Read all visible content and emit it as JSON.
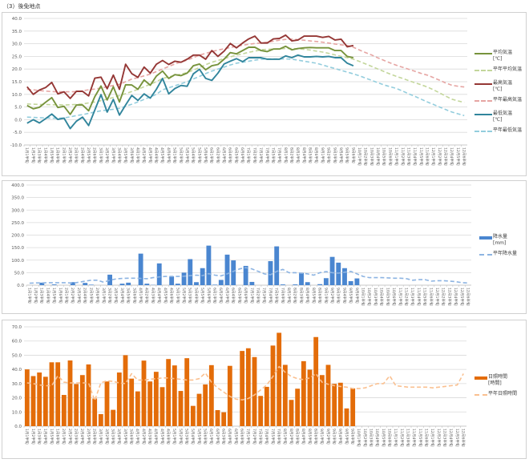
{
  "page_title": "（3）後免地点",
  "x_labels": [
    "1月1半旬",
    "1月2半旬",
    "1月3半旬",
    "1月4半旬",
    "1月5半旬",
    "1月6半旬",
    "2月1半旬",
    "2月2半旬",
    "2月3半旬",
    "2月4半旬",
    "2月5半旬",
    "2月6半旬",
    "3月1半旬",
    "3月2半旬",
    "3月3半旬",
    "3月4半旬",
    "3月5半旬",
    "3月6半旬",
    "4月1半旬",
    "4月2半旬",
    "4月3半旬",
    "4月4半旬",
    "4月5半旬",
    "4月6半旬",
    "5月1半旬",
    "5月2半旬",
    "5月3半旬",
    "5月4半旬",
    "5月5半旬",
    "5月6半旬",
    "6月1半旬",
    "6月2半旬",
    "6月3半旬",
    "6月4半旬",
    "6月5半旬",
    "6月6半旬",
    "7月1半旬",
    "7月2半旬",
    "7月3半旬",
    "7月4半旬",
    "7月5半旬",
    "7月6半旬",
    "8月1半旬",
    "8月2半旬",
    "8月3半旬",
    "8月4半旬",
    "8月5半旬",
    "8月6半旬",
    "9月1半旬",
    "9月2半旬",
    "9月3半旬",
    "9月4半旬",
    "9月5半旬",
    "9月6半旬",
    "10月1半旬",
    "10月2半旬",
    "10月3半旬",
    "10月4半旬",
    "10月5半旬",
    "10月6半旬",
    "11月1半旬",
    "11月2半旬",
    "11月3半旬",
    "11月4半旬",
    "11月5半旬",
    "11月6半旬",
    "12月1半旬",
    "12月2半旬",
    "12月3半旬",
    "12月4半旬",
    "12月5半旬",
    "12月6半旬"
  ],
  "legends": {
    "temp": [
      {
        "label": "平均気温",
        "unit": "[℃]"
      },
      {
        "label": "平年平均気温"
      },
      {
        "label": "最高気温",
        "unit": "[℃]"
      },
      {
        "label": "平年最高気温"
      },
      {
        "label": "最低気温",
        "unit": "[℃]"
      },
      {
        "label": "平年最低気温"
      }
    ],
    "precip": [
      {
        "label": "降水量",
        "unit": "[mm]"
      },
      {
        "label": "平年降水量"
      }
    ],
    "sun": [
      {
        "label": "日照時間",
        "unit": "[時間]"
      },
      {
        "label": "平年日照時間"
      }
    ]
  },
  "chart_data": [
    {
      "id": "temp",
      "type": "line",
      "title": "",
      "xlabel": "",
      "ylabel": "",
      "ylim": [
        -10,
        40
      ],
      "yticks": [
        "-10.0",
        "-5.0",
        "0.0",
        "5.0",
        "10.0",
        "15.0",
        "20.0",
        "25.0",
        "30.0",
        "35.0",
        "40.0"
      ],
      "grid": true,
      "legend": "right",
      "series": [
        {
          "name": "平年最高気温",
          "kind": "dashed",
          "color": "#e6a5a3",
          "values": [
            12,
            11.8,
            11.5,
            11.3,
            11.1,
            11,
            11,
            11,
            11.1,
            11.4,
            11.8,
            12.1,
            12.5,
            13,
            13.5,
            14,
            15,
            16,
            16.6,
            17.3,
            18,
            19,
            20,
            21,
            22,
            22.8,
            23.5,
            24.5,
            25.5,
            26.2,
            26.9,
            27.5,
            28,
            28.5,
            29,
            29.4,
            29.8,
            30.1,
            30.3,
            30.6,
            31,
            31.4,
            31.7,
            31.8,
            31.6,
            31.4,
            31.1,
            30.9,
            30.6,
            30.3,
            29.9,
            29.6,
            29.3,
            28.6,
            27.5,
            26.5,
            25.5,
            24.4,
            23.4,
            22.4,
            21.5,
            20.7,
            19.9,
            19.1,
            18.3,
            17.6,
            16.6,
            15.6,
            14.5,
            13.6,
            13.2,
            12.9
          ]
        },
        {
          "name": "平年平均気温",
          "kind": "dashed",
          "color": "#c3d69b",
          "values": [
            6.2,
            6.1,
            6,
            6,
            5.9,
            5.9,
            5.8,
            5.9,
            6,
            6.2,
            6.6,
            7,
            7.5,
            8.1,
            8.8,
            9.5,
            10.3,
            11.1,
            12,
            13,
            14,
            15,
            16.3,
            16.9,
            17.5,
            18,
            18.6,
            19.6,
            20.6,
            21.7,
            22.7,
            23.4,
            24.1,
            24.8,
            25.5,
            26,
            26.6,
            27.1,
            27.6,
            27.8,
            27.9,
            28,
            28.1,
            28.1,
            28,
            27.8,
            27.5,
            27.1,
            26.7,
            26.2,
            25.6,
            25,
            24.5,
            23.9,
            23,
            22,
            21,
            20,
            19,
            18,
            17.1,
            16.3,
            15.4,
            14.6,
            13.8,
            12.9,
            11.8,
            10.6,
            9.3,
            8.1,
            7.4,
            6.8
          ]
        },
        {
          "name": "平年最低気温",
          "kind": "dashed",
          "color": "#93cddd",
          "values": [
            1,
            0.9,
            0.8,
            0.7,
            0.6,
            0.5,
            0.7,
            1.1,
            1.6,
            2,
            2.5,
            3,
            3.5,
            3.8,
            4.1,
            4.5,
            5.3,
            6.1,
            7,
            8,
            9,
            10,
            11.8,
            12.6,
            13.4,
            14.2,
            15,
            16.1,
            17.1,
            18.2,
            19.2,
            20,
            20.8,
            21.6,
            22.3,
            22.7,
            23.1,
            23.5,
            23.9,
            24,
            24,
            24,
            24,
            23.9,
            23.5,
            23.1,
            22.7,
            22.3,
            21.6,
            20.9,
            20.2,
            19.5,
            18.8,
            18.1,
            17.3,
            16.4,
            15.5,
            14.6,
            13.7,
            13,
            12.3,
            11.3,
            10.2,
            9.2,
            8.1,
            7,
            6,
            5,
            4,
            3,
            2.3,
            1.6
          ]
        },
        {
          "name": "最高気温",
          "kind": "solid",
          "color": "#953735",
          "values": [
            13,
            10,
            11.7,
            12.7,
            14.7,
            10.2,
            11,
            8.4,
            11.2,
            11.2,
            9.4,
            16.4,
            16.8,
            12.2,
            17.6,
            12,
            21.9,
            18.2,
            16.7,
            20.8,
            18.4,
            21.9,
            23.4,
            21.8,
            23.1,
            22.7,
            23.9,
            25.5,
            25.5,
            23.9,
            27.3,
            25,
            27.1,
            30.1,
            28.4,
            30.3,
            31.9,
            33,
            30.3,
            30.3,
            31.9,
            32.1,
            33.4,
            31.1,
            31.5,
            33,
            33,
            33,
            32.5,
            32.9,
            31.5,
            31.8,
            28.8,
            29.3
          ]
        },
        {
          "name": "平均気温",
          "kind": "solid",
          "color": "#77933c",
          "values": [
            5.6,
            4.3,
            4.9,
            6.9,
            8.7,
            4.8,
            5.3,
            2.1,
            5.8,
            5.8,
            3.5,
            9.1,
            13.3,
            7.8,
            13,
            7,
            13.8,
            13.7,
            12,
            15.7,
            13.6,
            17.2,
            19.2,
            16.3,
            17.8,
            17.4,
            18.4,
            21.3,
            22,
            19.7,
            21.3,
            21.8,
            23.9,
            26.5,
            26,
            27.3,
            28.6,
            28.6,
            27.3,
            26.9,
            27.9,
            27.9,
            29,
            27.6,
            28.1,
            28.4,
            28.5,
            28.4,
            28.4,
            28.4,
            27.3,
            27.3,
            25,
            24.5
          ]
        },
        {
          "name": "最低気温",
          "kind": "solid",
          "color": "#31859c",
          "values": [
            -1.4,
            0,
            -1.3,
            0.4,
            2.2,
            0.1,
            0.6,
            -3.5,
            -0.6,
            1,
            -2.3,
            3.8,
            9.9,
            3,
            8,
            1.8,
            5.8,
            9.6,
            7.6,
            10.2,
            8.5,
            12,
            16.3,
            10.2,
            12.3,
            13.5,
            13.2,
            18.1,
            19.9,
            16.3,
            15.5,
            18.4,
            22,
            23.1,
            24.1,
            22.9,
            24.5,
            24.5,
            24.5,
            23.9,
            23.9,
            23.9,
            25.2,
            24.5,
            25.5,
            24.8,
            24.8,
            25,
            24.8,
            25,
            24.5,
            24.5,
            22.3,
            21.3
          ]
        }
      ]
    },
    {
      "id": "precip",
      "type": "bar",
      "title": "",
      "xlabel": "",
      "ylabel": "",
      "ylim": [
        0,
        400
      ],
      "yticks": [
        "0.0",
        "50.0",
        "100.0",
        "150.0",
        "200.0",
        "250.0",
        "300.0",
        "350.0",
        "400.0"
      ],
      "grid": true,
      "legend": "right",
      "series": [
        {
          "name": "降水量",
          "kind": "bar",
          "color": "#4a86d0",
          "values": [
            0,
            0,
            10,
            0,
            3,
            0,
            0,
            12,
            0,
            9,
            2,
            0,
            0,
            42,
            0,
            6,
            10,
            0,
            126,
            6,
            1,
            87,
            0,
            35,
            6,
            50,
            104,
            12,
            68,
            158,
            2,
            21,
            122,
            99,
            0,
            77,
            13,
            0,
            0,
            96,
            155,
            3,
            0,
            3,
            49,
            12,
            0,
            4,
            28,
            113,
            90,
            68,
            16,
            27
          ]
        },
        {
          "name": "平年降水量",
          "kind": "dashed",
          "color": "#8db4e2",
          "values": [
            8,
            9,
            9,
            10,
            10,
            10,
            10,
            8,
            12,
            16,
            20,
            20,
            12,
            20,
            25,
            27,
            28,
            28,
            27,
            26,
            30,
            33,
            35,
            35,
            35,
            36,
            38,
            40,
            38,
            46,
            40,
            37,
            45,
            55,
            65,
            70,
            65,
            55,
            45,
            42,
            55,
            63,
            50,
            50,
            48,
            45,
            40,
            50,
            54,
            50,
            48,
            52,
            55,
            45,
            35,
            30,
            30,
            30,
            29,
            28,
            28,
            26,
            20,
            22,
            22,
            16,
            18,
            18,
            16,
            14,
            10,
            9
          ]
        }
      ]
    },
    {
      "id": "sun",
      "type": "bar",
      "title": "",
      "xlabel": "",
      "ylabel": "",
      "ylim": [
        0,
        70
      ],
      "yticks": [
        "0.0",
        "10.0",
        "20.0",
        "30.0",
        "40.0",
        "50.0",
        "60.0",
        "70.0"
      ],
      "grid": true,
      "legend": "right",
      "series": [
        {
          "name": "日照時間",
          "kind": "bar",
          "color": "#e36c09",
          "values": [
            40,
            35.3,
            37.8,
            34.8,
            45,
            45,
            22,
            46.3,
            29.7,
            36,
            43.5,
            19.5,
            8.5,
            31.5,
            11.5,
            37.8,
            50,
            33.5,
            24.5,
            46.2,
            31.5,
            38.3,
            27.5,
            47.3,
            42.8,
            24.8,
            47.9,
            14.3,
            22.8,
            29.4,
            43,
            11.3,
            9.8,
            42.5,
            0,
            53,
            54.9,
            48.7,
            21.3,
            27.7,
            56.8,
            65.8,
            43.2,
            18.5,
            26.4,
            45.8,
            39.8,
            62.8,
            36,
            43.2,
            29.8,
            30.6,
            12.5,
            26.6
          ]
        },
        {
          "name": "平年日照時間",
          "kind": "dashed",
          "color": "#fac090",
          "values": [
            30.5,
            30,
            29,
            28.5,
            28.5,
            35.5,
            31,
            30.5,
            30.5,
            30.5,
            30.5,
            18,
            30.5,
            32,
            31.5,
            30.5,
            30,
            37,
            32.5,
            32.5,
            33,
            33.5,
            34,
            34,
            33.5,
            33,
            32.5,
            32.5,
            33.5,
            37.5,
            31,
            27,
            24,
            21,
            19,
            18.5,
            19.5,
            22,
            25.5,
            29,
            35,
            42,
            38,
            35,
            33.5,
            32.8,
            34,
            37,
            31,
            29.5,
            28.5,
            28,
            27.5,
            26.5,
            26.5,
            27,
            28.5,
            30,
            30,
            35.5,
            28.5,
            28,
            27.5,
            27.5,
            27.5,
            27.5,
            27,
            27.5,
            28,
            28.5,
            29,
            37
          ]
        }
      ]
    }
  ]
}
